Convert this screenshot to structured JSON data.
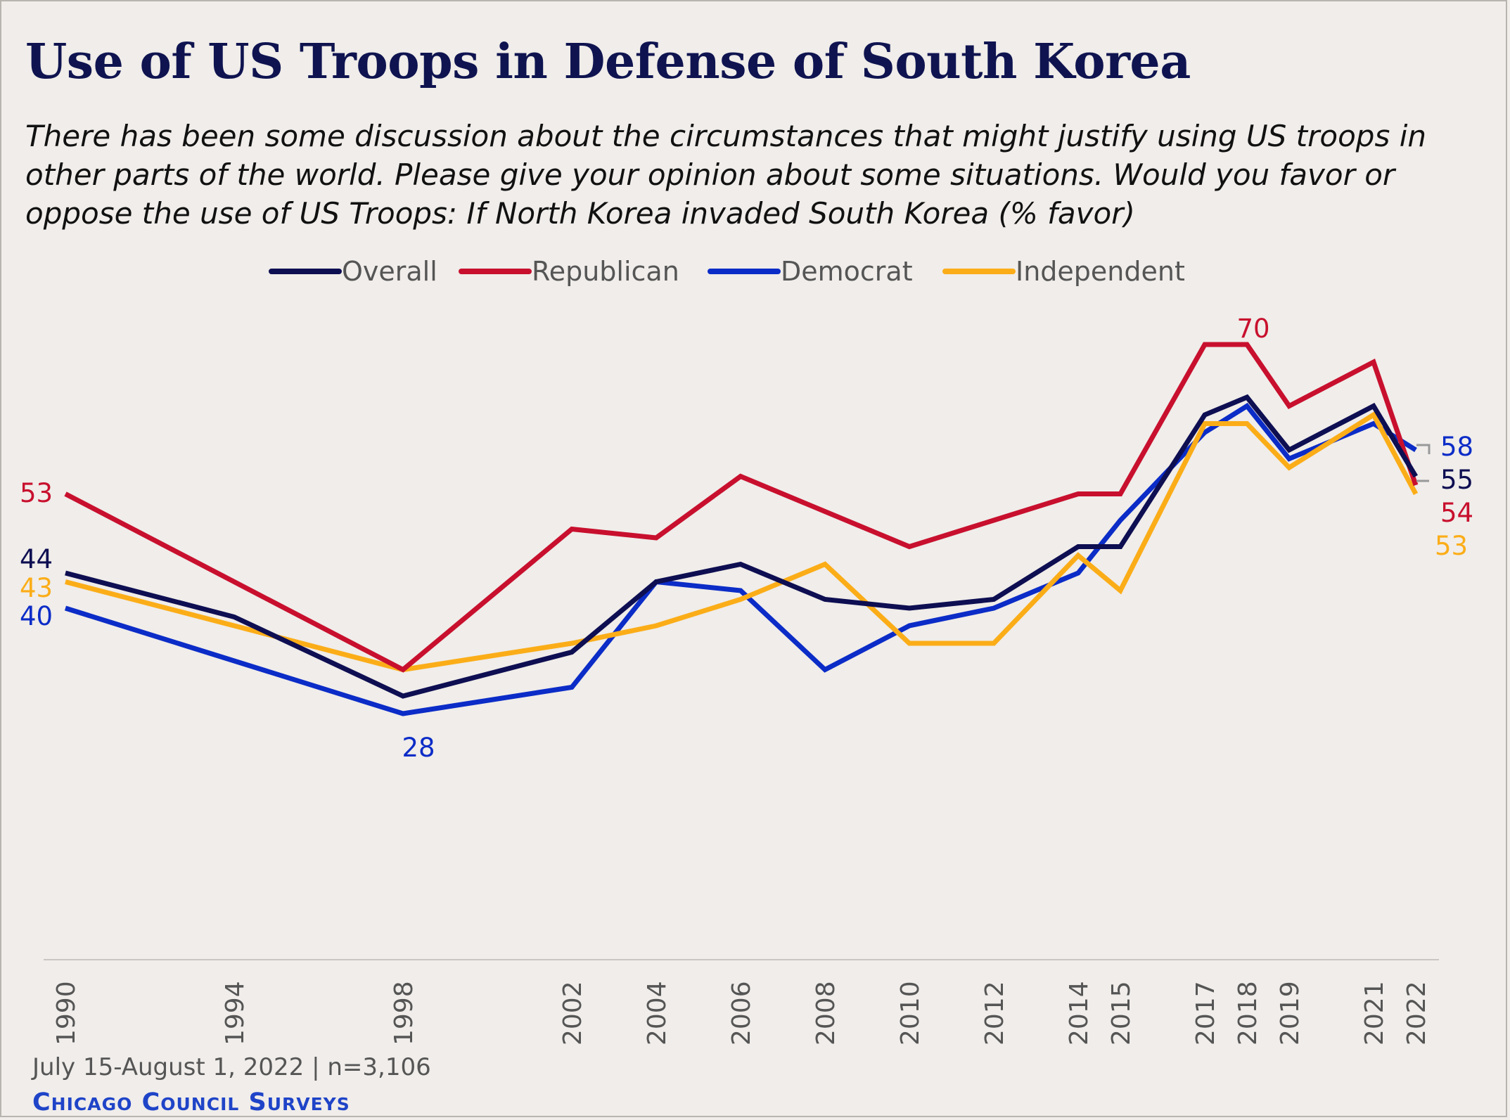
{
  "title": "Use of US Troops in Defense of South Korea",
  "subtitle": "There has been some discussion about the circumstances that might justify using US troops in other parts of the world. Please give your opinion about some situations. Would you favor or oppose the use of US Troops: If North Korea invaded South Korea (% favor)",
  "footer": {
    "note": "July 15-August 1, 2022 | n=3,106",
    "brand": "Chicago Council Surveys"
  },
  "chart_data": {
    "type": "line",
    "x": [
      1990,
      1994,
      1998,
      2002,
      2004,
      2006,
      2008,
      2010,
      2012,
      2014,
      2015,
      2017,
      2018,
      2019,
      2021,
      2022
    ],
    "ylim": [
      0,
      75
    ],
    "legend_position": "top",
    "grid": false,
    "series": [
      {
        "name": "Overall",
        "color": "#0e0e52",
        "values": [
          44,
          39,
          30,
          35,
          43,
          45,
          41,
          40,
          41,
          47,
          47,
          62,
          64,
          58,
          63,
          55
        ]
      },
      {
        "name": "Republican",
        "color": "#c8102e",
        "values": [
          53,
          43,
          33,
          49,
          48,
          55,
          51,
          47,
          50,
          53,
          53,
          70,
          70,
          63,
          68,
          54
        ]
      },
      {
        "name": "Democrat",
        "color": "#0b2cc7",
        "values": [
          40,
          34,
          28,
          31,
          43,
          42,
          33,
          38,
          40,
          44,
          50,
          60,
          63,
          57,
          61,
          58
        ]
      },
      {
        "name": "Independent",
        "color": "#fbad18",
        "values": [
          43,
          38,
          33,
          36,
          38,
          41,
          45,
          36,
          36,
          46,
          42,
          61,
          61,
          56,
          62,
          53
        ]
      }
    ],
    "labels": [
      {
        "series": "Republican",
        "x": 1990,
        "text": "53"
      },
      {
        "series": "Overall",
        "x": 1990,
        "text": "44"
      },
      {
        "series": "Independent",
        "x": 1990,
        "text": "43"
      },
      {
        "series": "Democrat",
        "x": 1990,
        "text": "40"
      },
      {
        "series": "Democrat",
        "x": 1998,
        "text": "28"
      },
      {
        "series": "Republican",
        "x": 2017,
        "text": "70"
      },
      {
        "series": "Democrat",
        "x": 2022,
        "text": "58"
      },
      {
        "series": "Overall",
        "x": 2022,
        "text": "55"
      },
      {
        "series": "Republican",
        "x": 2022,
        "text": "54"
      },
      {
        "series": "Independent",
        "x": 2022,
        "text": "53"
      }
    ]
  }
}
